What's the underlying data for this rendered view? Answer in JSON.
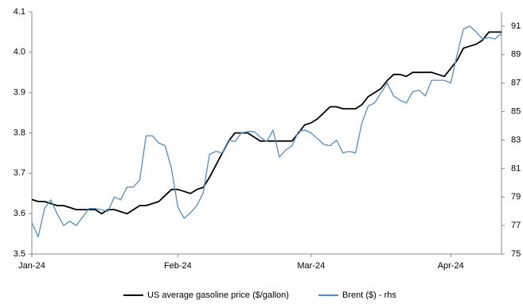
{
  "chart_data": {
    "type": "line",
    "categories": [
      "Jan-24",
      null,
      null,
      null,
      null,
      null,
      null,
      null,
      null,
      null,
      null,
      null,
      null,
      null,
      null,
      null,
      null,
      null,
      null,
      null,
      null,
      null,
      null,
      "Feb-24",
      null,
      null,
      null,
      null,
      null,
      null,
      null,
      null,
      null,
      null,
      null,
      null,
      null,
      null,
      null,
      null,
      null,
      null,
      null,
      null,
      "Mar-24",
      null,
      null,
      null,
      null,
      null,
      null,
      null,
      null,
      null,
      null,
      null,
      null,
      null,
      null,
      null,
      null,
      null,
      null,
      null,
      null,
      null,
      "Apr-24",
      null,
      null,
      null,
      null,
      null,
      null,
      null,
      null
    ],
    "series": [
      {
        "name": "US average gasoline price ($/gallon)",
        "color": "#000000",
        "axis": "y",
        "values": [
          3.635,
          3.63,
          3.63,
          3.625,
          3.62,
          3.62,
          3.615,
          3.61,
          3.61,
          3.61,
          3.61,
          3.6,
          3.61,
          3.61,
          3.605,
          3.6,
          3.61,
          3.62,
          3.62,
          3.625,
          3.63,
          3.645,
          3.66,
          3.66,
          3.655,
          3.65,
          3.66,
          3.665,
          3.69,
          3.72,
          3.75,
          3.78,
          3.8,
          3.8,
          3.8,
          3.79,
          3.78,
          3.78,
          3.78,
          3.78,
          3.78,
          3.78,
          3.8,
          3.82,
          3.825,
          3.835,
          3.85,
          3.865,
          3.865,
          3.86,
          3.86,
          3.86,
          3.87,
          3.89,
          3.9,
          3.91,
          3.93,
          3.945,
          3.945,
          3.94,
          3.95,
          3.95,
          3.95,
          3.95,
          3.945,
          3.94,
          3.96,
          3.98,
          4.01,
          4.015,
          4.02,
          4.03,
          4.05,
          4.05,
          4.05
        ]
      },
      {
        "name": "Brent ($) - rhs",
        "color": "#4f8fc6",
        "axis": "y2",
        "values": [
          77.2,
          76.2,
          78.2,
          78.8,
          77.8,
          77.0,
          77.3,
          77.0,
          77.6,
          78.2,
          78.2,
          78.1,
          78.0,
          79.0,
          78.8,
          79.7,
          79.7,
          80.2,
          83.3,
          83.3,
          82.8,
          82.6,
          81.0,
          78.3,
          77.5,
          77.9,
          78.4,
          79.3,
          82.0,
          82.2,
          82.1,
          83.0,
          82.9,
          83.5,
          83.6,
          83.6,
          83.2,
          82.9,
          83.7,
          81.8,
          82.3,
          82.6,
          83.6,
          83.7,
          83.5,
          83.1,
          82.7,
          82.6,
          83.0,
          82.1,
          82.2,
          82.1,
          84.2,
          85.4,
          85.6,
          86.3,
          87.0,
          86.1,
          85.8,
          85.6,
          86.4,
          86.5,
          86.1,
          87.2,
          87.2,
          87.2,
          87.0,
          89.0,
          90.8,
          91.0,
          90.6,
          90.1,
          90.2,
          90.1,
          90.5
        ]
      }
    ],
    "ylim": [
      3.5,
      4.1
    ],
    "yticks": [
      3.5,
      3.6,
      3.7,
      3.8,
      3.9,
      {
        "value": 4.0,
        "label": "4.0"
      },
      4.1
    ],
    "y2lim": [
      75,
      92
    ],
    "y2ticks": [
      75,
      77,
      79,
      81,
      83,
      85,
      87,
      89,
      91
    ],
    "grid": false,
    "legend": "bottom"
  }
}
